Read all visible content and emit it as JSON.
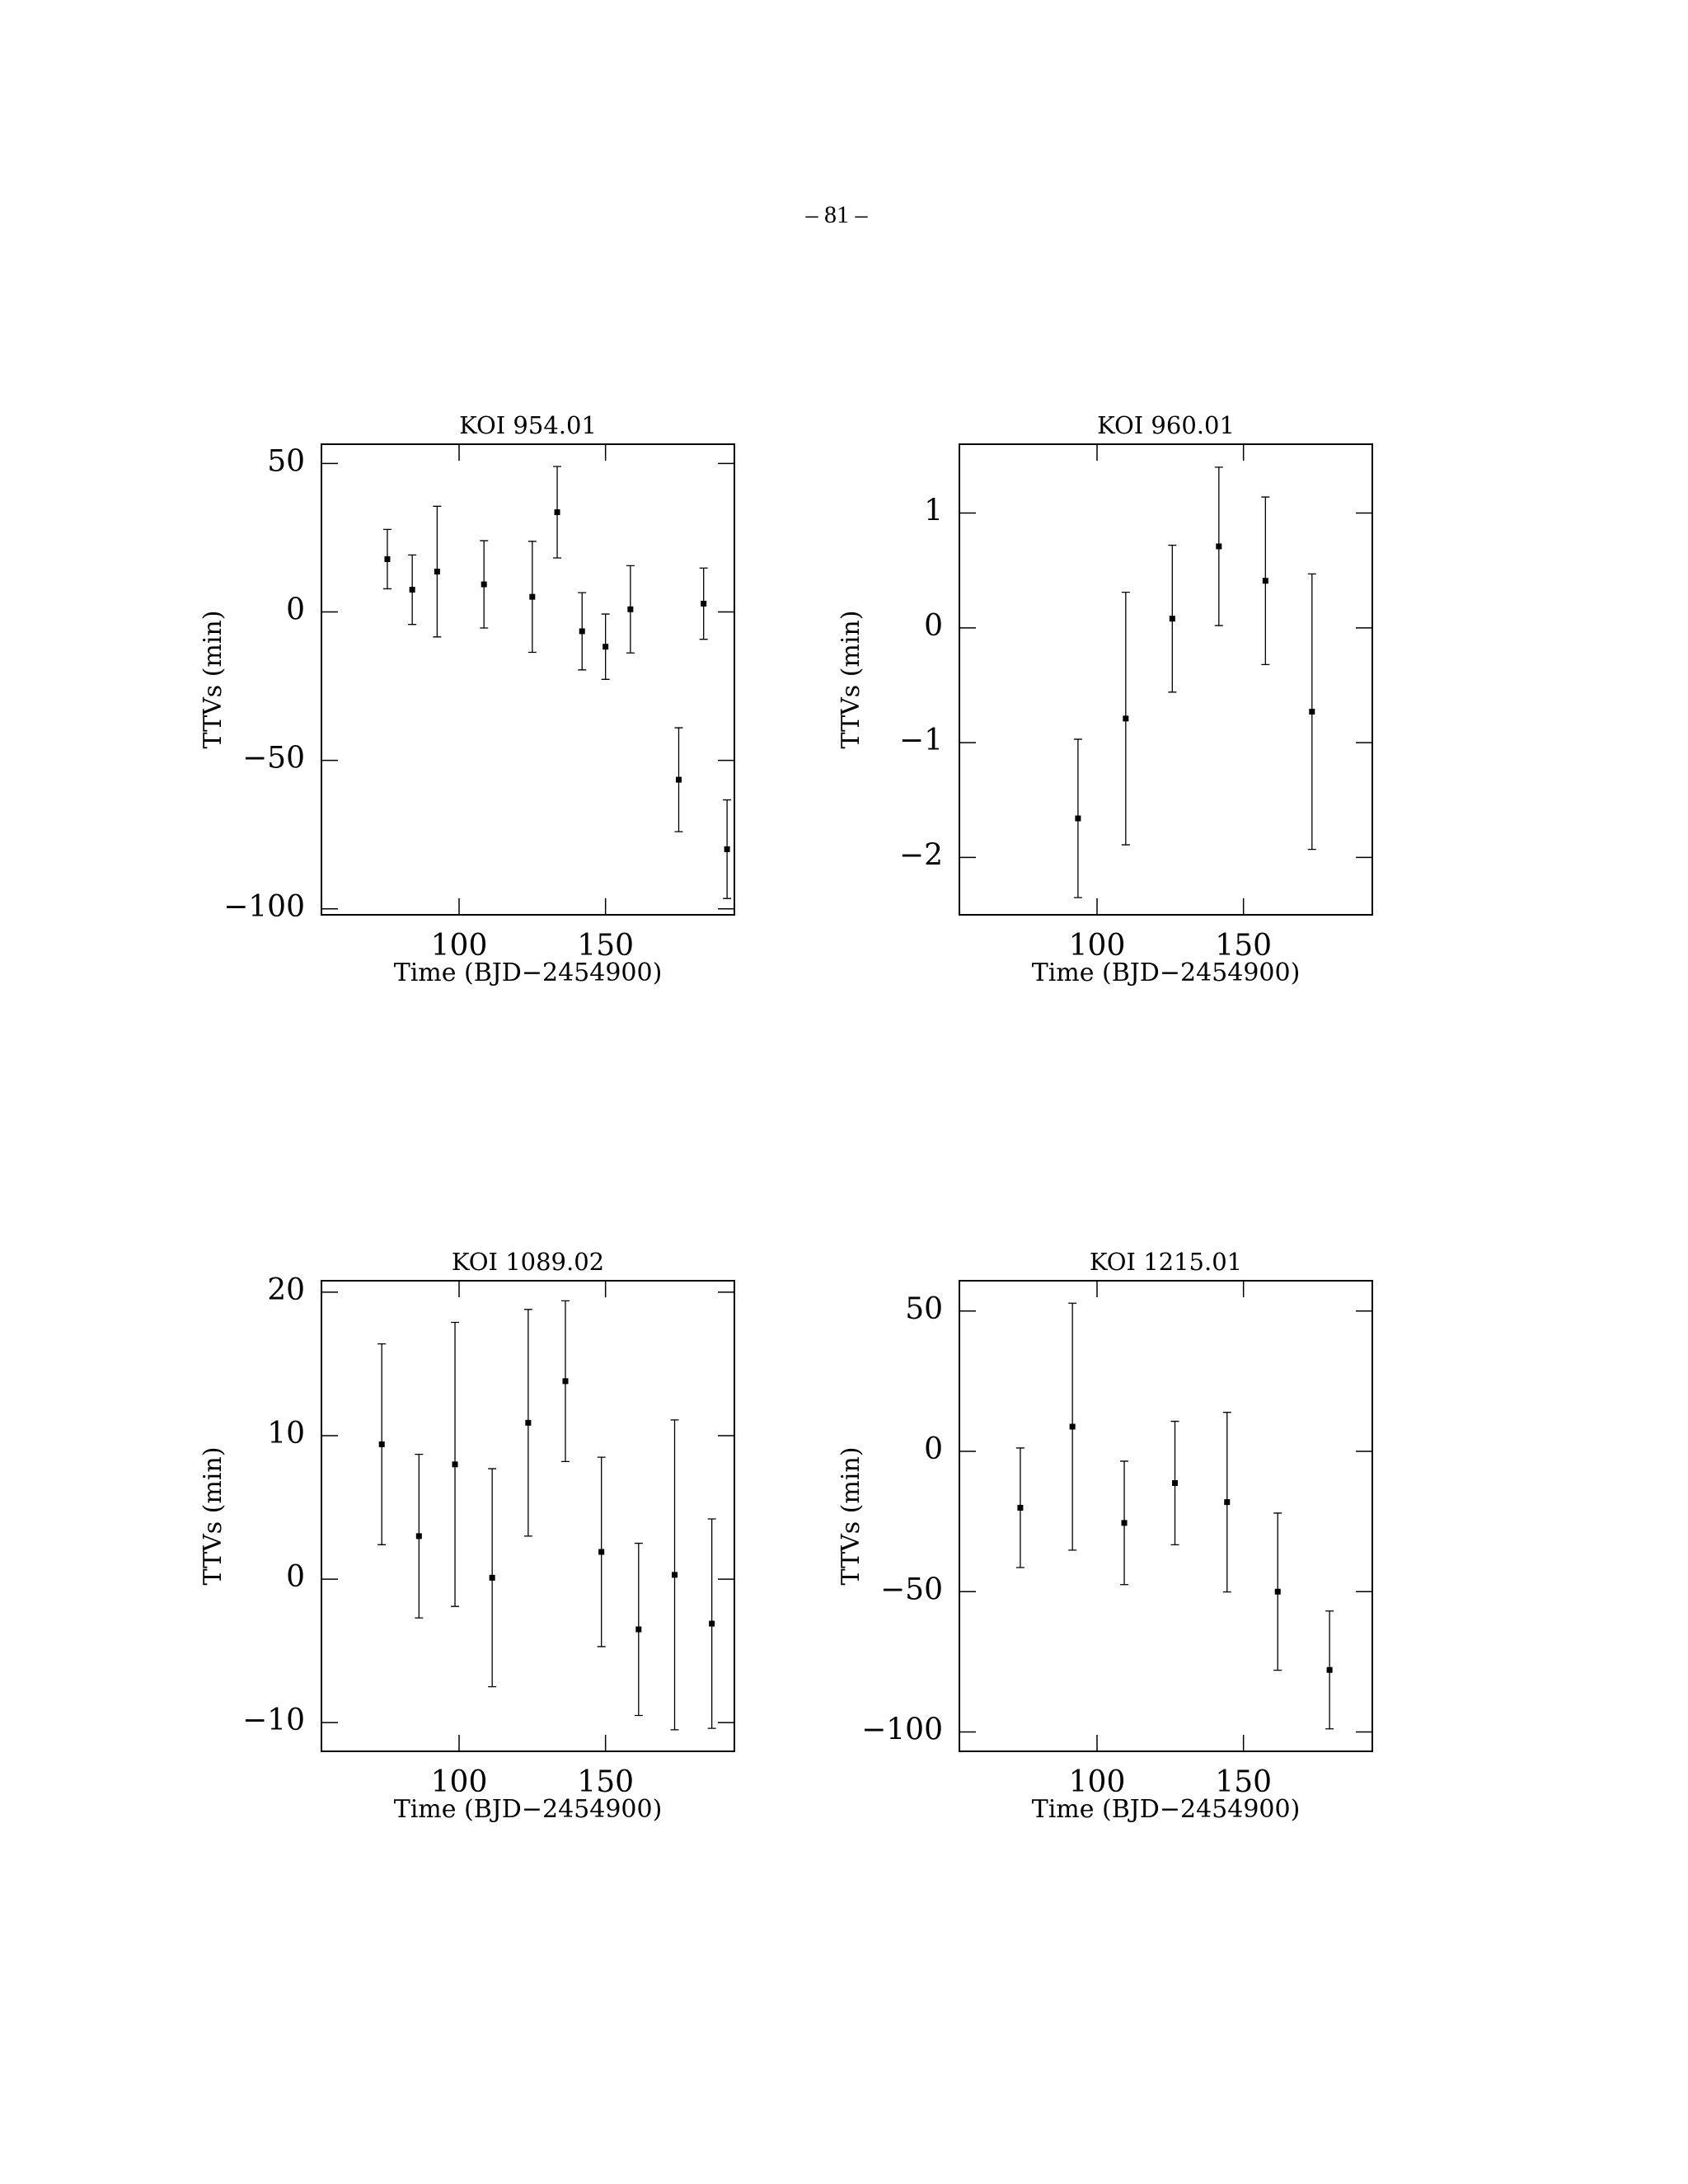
{
  "page_number": "– 81 –",
  "chart_data": [
    {
      "type": "errorbar",
      "title": "KOI 954.01",
      "x_label": "Time (BJD−2454900)",
      "y_label": "TTVs (min)",
      "color": "#000000",
      "xlim": [
        53,
        194
      ],
      "ylim": [
        -102,
        56.5
      ],
      "xticks": [
        100,
        150
      ],
      "yticks": [
        {
          "value": -100,
          "label": "−100"
        },
        {
          "value": -50,
          "label": "−50"
        },
        0,
        50
      ],
      "x": [
        75.5,
        84,
        92.5,
        108.5,
        125,
        133.5,
        142,
        150,
        158.5,
        175,
        183.5,
        191.5
      ],
      "values": [
        17.8,
        7.5,
        13.6,
        9.3,
        5.1,
        33.6,
        -6.5,
        -11.7,
        0.9,
        -56.5,
        2.8,
        -79.9
      ],
      "errors": [
        10,
        11.7,
        22,
        14.7,
        18.7,
        15.4,
        13,
        11,
        14.7,
        17.5,
        12,
        16.6
      ]
    },
    {
      "type": "errorbar",
      "title": "KOI 960.01",
      "x_label": "Time (BJD−2454900)",
      "y_label": "TTVs (min)",
      "color": "#000000",
      "xlim": [
        53,
        194
      ],
      "ylim": [
        -2.5,
        1.6
      ],
      "xticks": [
        100,
        150
      ],
      "yticks": [
        {
          "value": -2,
          "label": "−2"
        },
        {
          "value": -1,
          "label": "−1"
        },
        0,
        1
      ],
      "x": [
        93.5,
        109.8,
        125.7,
        141.6,
        157.5,
        173.4
      ],
      "values": [
        -1.66,
        -0.79,
        0.08,
        0.71,
        0.41,
        -0.73
      ],
      "errors": [
        0.69,
        1.1,
        0.64,
        0.69,
        0.73,
        1.2
      ]
    },
    {
      "type": "errorbar",
      "title": "KOI 1089.02",
      "x_label": "Time (BJD−2454900)",
      "y_label": "TTVs (min)",
      "color": "#000000",
      "xlim": [
        53,
        194
      ],
      "ylim": [
        -12,
        20.8
      ],
      "xticks": [
        100,
        150
      ],
      "yticks": [
        {
          "value": -10,
          "label": "−10"
        },
        0,
        10,
        20
      ],
      "x": [
        73.6,
        86.3,
        98.6,
        111.3,
        123.6,
        136.3,
        148.6,
        161.3,
        173.6,
        186.3
      ],
      "values": [
        9.4,
        3.0,
        8.0,
        0.1,
        10.9,
        13.8,
        1.9,
        -3.5,
        0.3,
        -3.1
      ],
      "errors": [
        7,
        5.7,
        9.9,
        7.6,
        7.9,
        5.6,
        6.6,
        6,
        10.8,
        7.3
      ]
    },
    {
      "type": "errorbar",
      "title": "KOI 1215.01",
      "x_label": "Time (BJD−2454900)",
      "y_label": "TTVs (min)",
      "color": "#000000",
      "xlim": [
        53,
        194
      ],
      "ylim": [
        -106.9,
        60.8
      ],
      "xticks": [
        100,
        150
      ],
      "yticks": [
        {
          "value": -100,
          "label": "−100"
        },
        {
          "value": -50,
          "label": "−50"
        },
        0,
        50
      ],
      "x": [
        73.8,
        91.6,
        109.3,
        126.6,
        144.4,
        161.7,
        179.4
      ],
      "values": [
        -20.1,
        8.8,
        -25.5,
        -11.3,
        -18.1,
        -50,
        -77.9
      ],
      "errors": [
        21.3,
        44,
        22,
        22,
        32,
        28,
        21
      ]
    }
  ]
}
